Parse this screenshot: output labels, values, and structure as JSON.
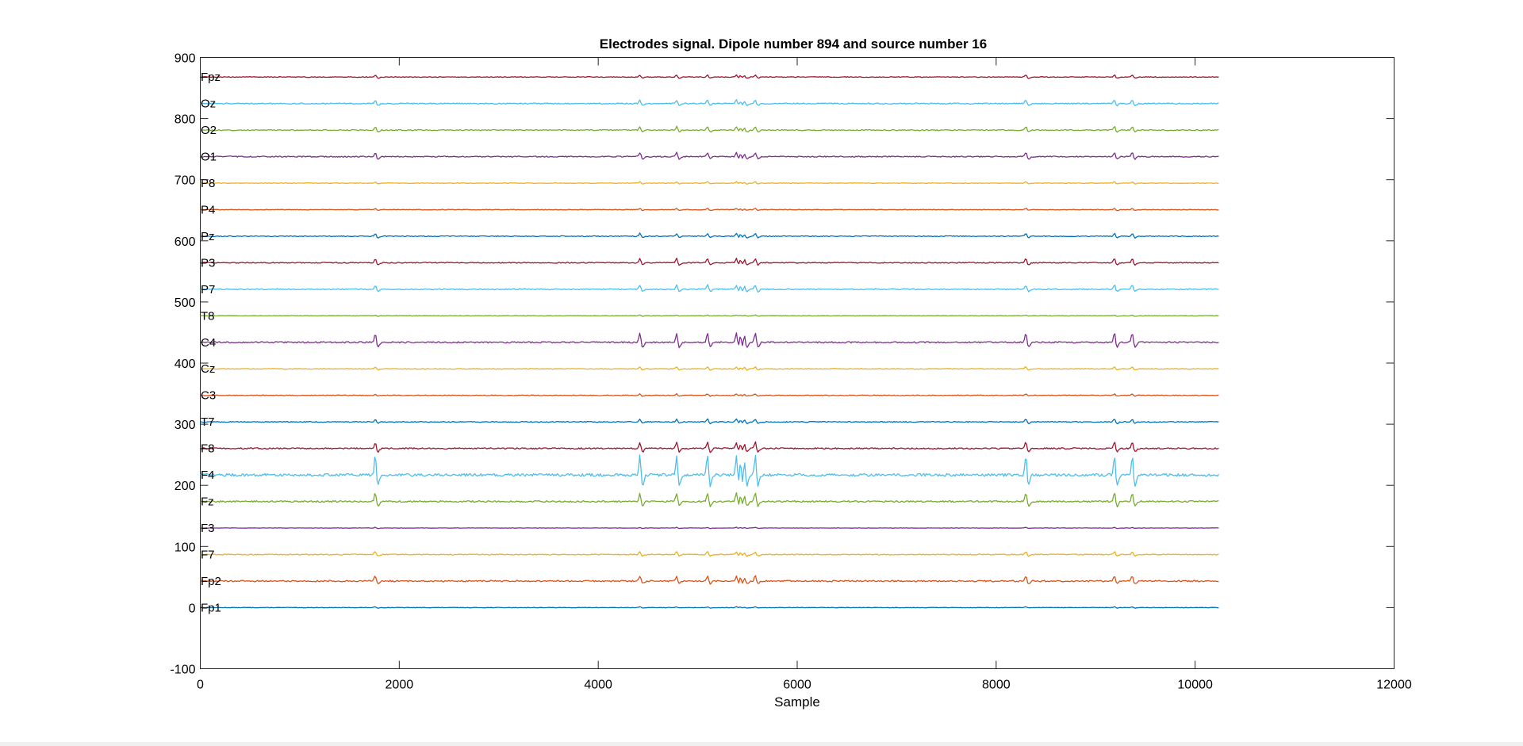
{
  "chart_data": {
    "type": "line",
    "title": "Electrodes signal. Dipole number 894 and source number 16",
    "xlabel": "Sample",
    "ylabel": "",
    "xlim": [
      0,
      12000
    ],
    "ylim": [
      -100,
      900
    ],
    "xticks": [
      0,
      2000,
      4000,
      6000,
      8000,
      10000,
      12000
    ],
    "yticks": [
      -100,
      0,
      100,
      200,
      300,
      400,
      500,
      600,
      700,
      800,
      900
    ],
    "grid": false,
    "legend": "none",
    "sample_range": [
      1,
      10240
    ],
    "spike_samples": [
      1760,
      4420,
      4790,
      5100,
      5390,
      5430,
      5470,
      5580,
      8300,
      9190,
      9370
    ],
    "series": [
      {
        "name": "Fp1",
        "offset": 0,
        "spike_amplitude": 1,
        "noise_amplitude": 0.4,
        "color": "#0072BD"
      },
      {
        "name": "Fp2",
        "offset": 43.4,
        "spike_amplitude": 7,
        "noise_amplitude": 1.2,
        "color": "#D95319"
      },
      {
        "name": "F7",
        "offset": 86.8,
        "spike_amplitude": 4,
        "noise_amplitude": 0.8,
        "color": "#EDB120"
      },
      {
        "name": "F3",
        "offset": 130.2,
        "spike_amplitude": 1,
        "noise_amplitude": 0.3,
        "color": "#7E2F8E"
      },
      {
        "name": "Fz",
        "offset": 173.6,
        "spike_amplitude": 12,
        "noise_amplitude": 1.3,
        "color": "#77AC30"
      },
      {
        "name": "F4",
        "offset": 217,
        "spike_amplitude": 28,
        "noise_amplitude": 2.2,
        "color": "#4DBEEE"
      },
      {
        "name": "F8",
        "offset": 260.4,
        "spike_amplitude": 9,
        "noise_amplitude": 1.1,
        "color": "#A2142F"
      },
      {
        "name": "T7",
        "offset": 303.8,
        "spike_amplitude": 4,
        "noise_amplitude": 0.8,
        "color": "#0072BD"
      },
      {
        "name": "C3",
        "offset": 347.2,
        "spike_amplitude": 2,
        "noise_amplitude": 0.6,
        "color": "#D95319"
      },
      {
        "name": "Cz",
        "offset": 390.6,
        "spike_amplitude": 3,
        "noise_amplitude": 0.6,
        "color": "#EDB120"
      },
      {
        "name": "C4",
        "offset": 434,
        "spike_amplitude": 13,
        "noise_amplitude": 1.2,
        "color": "#7E2F8E"
      },
      {
        "name": "T8",
        "offset": 477.4,
        "spike_amplitude": 1,
        "noise_amplitude": 0.4,
        "color": "#77AC30"
      },
      {
        "name": "P7",
        "offset": 520.8,
        "spike_amplitude": 6,
        "noise_amplitude": 0.9,
        "color": "#4DBEEE"
      },
      {
        "name": "P3",
        "offset": 564.2,
        "spike_amplitude": 6,
        "noise_amplitude": 0.8,
        "color": "#A2142F"
      },
      {
        "name": "Pz",
        "offset": 607.6,
        "spike_amplitude": 4,
        "noise_amplitude": 0.7,
        "color": "#0072BD"
      },
      {
        "name": "P4",
        "offset": 651,
        "spike_amplitude": 2,
        "noise_amplitude": 0.5,
        "color": "#D95319"
      },
      {
        "name": "P8",
        "offset": 694.4,
        "spike_amplitude": 2,
        "noise_amplitude": 0.5,
        "color": "#EDB120"
      },
      {
        "name": "O1",
        "offset": 737.8,
        "spike_amplitude": 6,
        "noise_amplitude": 0.9,
        "color": "#7E2F8E"
      },
      {
        "name": "O2",
        "offset": 781.2,
        "spike_amplitude": 5,
        "noise_amplitude": 0.9,
        "color": "#77AC30"
      },
      {
        "name": "Oz",
        "offset": 824.6,
        "spike_amplitude": 5,
        "noise_amplitude": 0.9,
        "color": "#4DBEEE"
      },
      {
        "name": "Fpz",
        "offset": 868,
        "spike_amplitude": 3,
        "noise_amplitude": 0.6,
        "color": "#A2142F"
      }
    ]
  }
}
